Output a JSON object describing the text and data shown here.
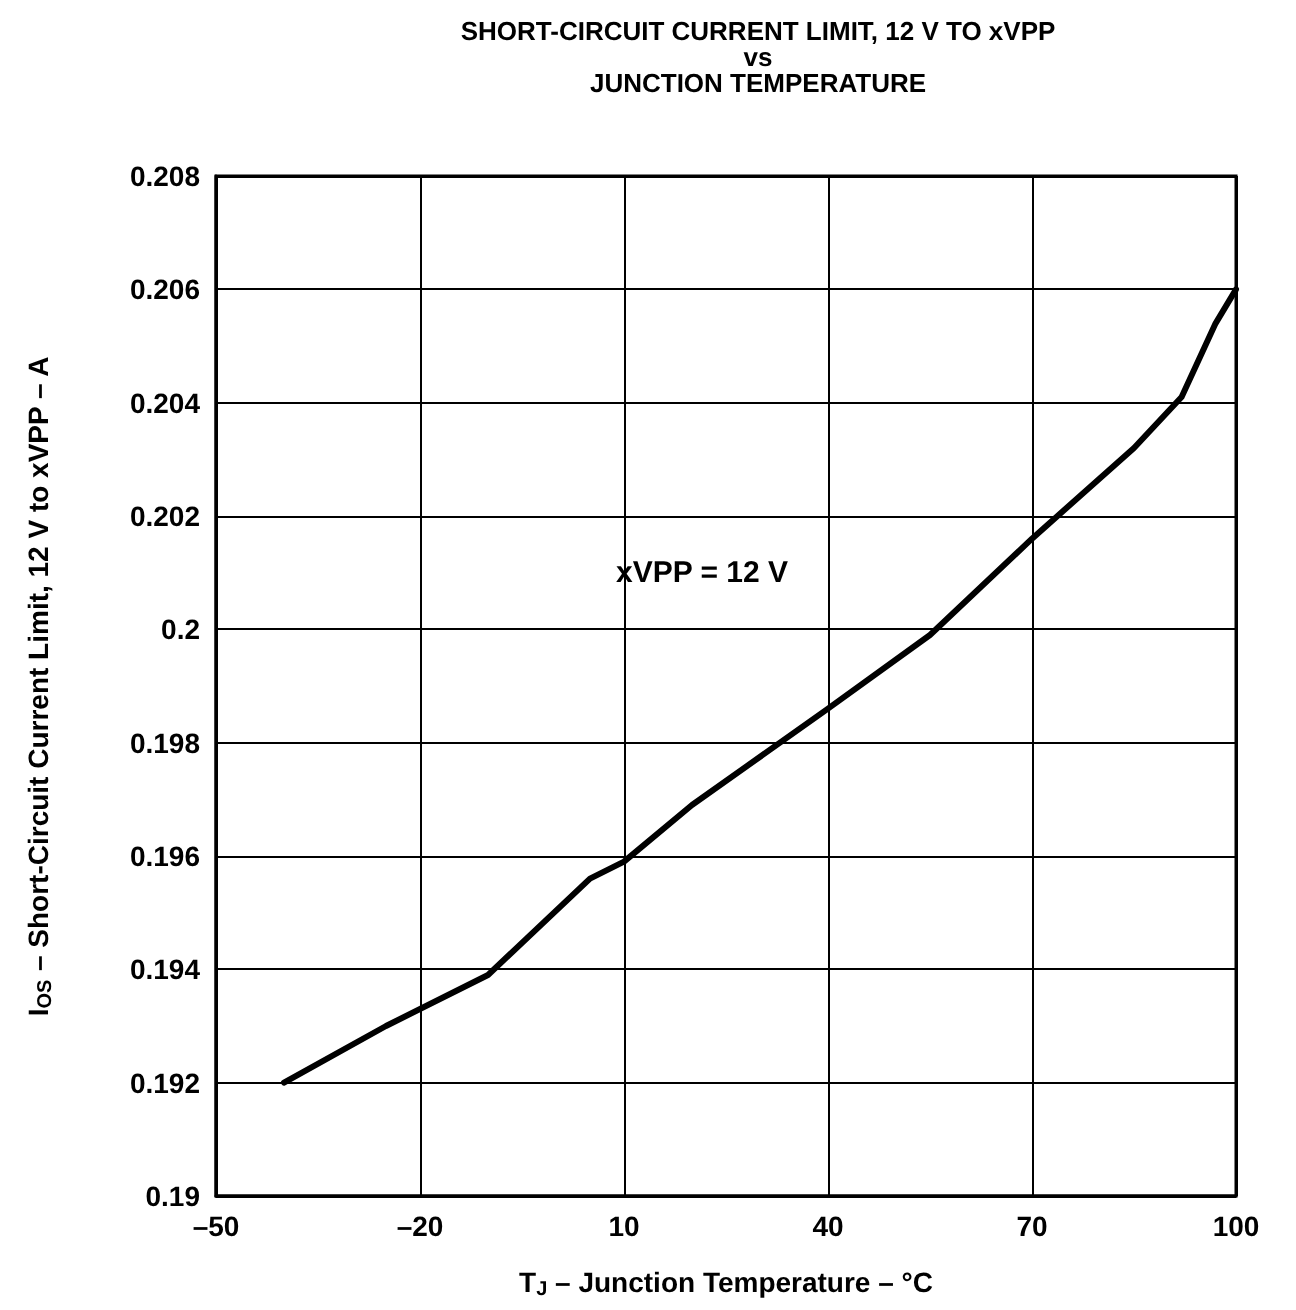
{
  "chart_data": {
    "type": "line",
    "title": "SHORT-CIRCUIT CURRENT LIMIT, 12 V TO xVPP\nvs\nJUNCTION TEMPERATURE",
    "xlabel": "T$_{J}$ – Junction Temperature – °C",
    "ylabel": "I$_{OS}$ – Short-Circuit Current Limit, 12 V to xVPP – A",
    "annotations": [
      "xVPP = 12 V"
    ],
    "x": [
      -40,
      -25,
      -10,
      5,
      10,
      20,
      40,
      55,
      70,
      85,
      92,
      97,
      100
    ],
    "series": [
      {
        "color": "#000000",
        "values": [
          0.192,
          0.193,
          0.1939,
          0.1956,
          0.1959,
          0.1969,
          0.1986,
          0.1999,
          0.2016,
          0.2032,
          0.2041,
          0.2054,
          0.206
        ]
      }
    ],
    "xlim": [
      -50,
      100
    ],
    "xticks": [
      {
        "value": -50,
        "label": "–50"
      },
      {
        "value": -20,
        "label": "–20"
      },
      10,
      40,
      70,
      100
    ],
    "ylim": [
      0.19,
      0.208
    ],
    "yticks": [
      0.19,
      0.192,
      0.194,
      0.196,
      0.198,
      0.2,
      0.202,
      0.204,
      0.206,
      0.208
    ],
    "grid": true,
    "marker": "none",
    "line_style": "solid"
  }
}
